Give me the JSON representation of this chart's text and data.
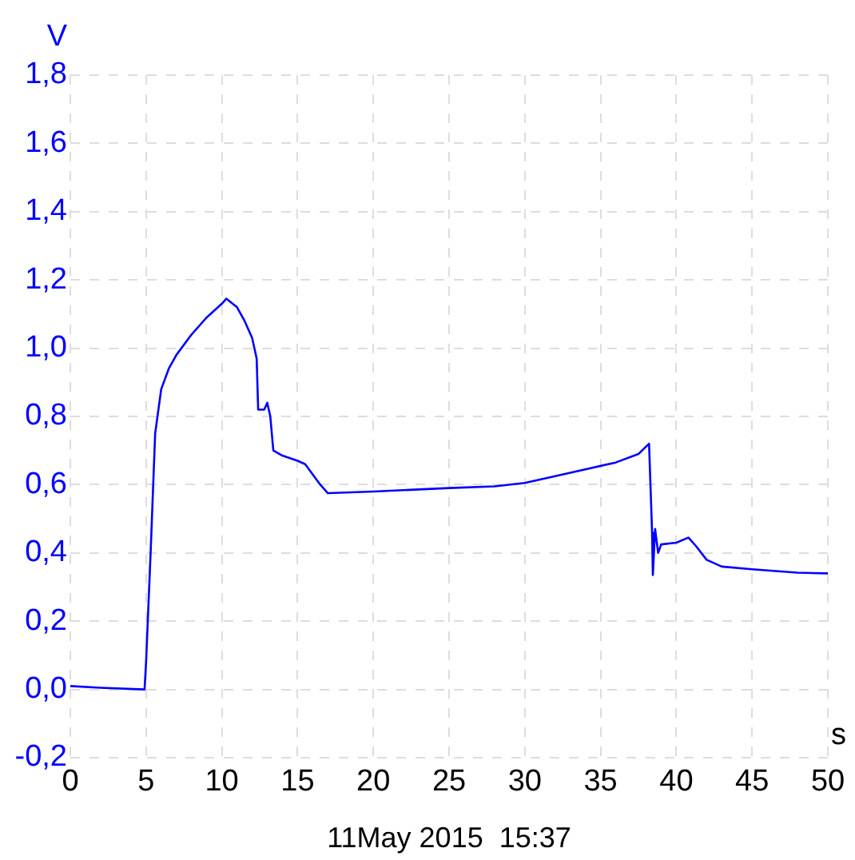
{
  "chart_data": {
    "type": "line",
    "xlabel": "s",
    "ylabel": "V",
    "annotations": [
      "11May 2015  15:37"
    ],
    "x": [
      0,
      2,
      4.9,
      5.0,
      5.3,
      5.6,
      6.0,
      6.5,
      7,
      8,
      9,
      10,
      10.3,
      11,
      11.5,
      12,
      12.3,
      12.4,
      12.8,
      13.0,
      13.2,
      13.4,
      14,
      15,
      15.5,
      16.5,
      17,
      20,
      25,
      28,
      30,
      33,
      36,
      37.5,
      38.2,
      38.4,
      38.45,
      38.6,
      38.8,
      39,
      40,
      40.8,
      41.3,
      42,
      43,
      45,
      48,
      50
    ],
    "series": [
      {
        "color": "#0000ff",
        "values": [
          0.01,
          0.005,
          0.0,
          0.08,
          0.4,
          0.75,
          0.88,
          0.94,
          0.98,
          1.04,
          1.09,
          1.13,
          1.145,
          1.12,
          1.08,
          1.03,
          0.97,
          0.82,
          0.82,
          0.84,
          0.8,
          0.7,
          0.685,
          0.67,
          0.66,
          0.6,
          0.575,
          0.58,
          0.59,
          0.595,
          0.605,
          0.635,
          0.665,
          0.69,
          0.72,
          0.46,
          0.335,
          0.47,
          0.4,
          0.425,
          0.43,
          0.445,
          0.42,
          0.38,
          0.36,
          0.352,
          0.342,
          0.34
        ]
      }
    ],
    "xlim": [
      0,
      50
    ],
    "xticks": [
      0,
      5,
      10,
      15,
      20,
      25,
      30,
      35,
      40,
      45,
      50
    ],
    "ylim": [
      -0.2,
      1.8
    ],
    "yticks": [
      {
        "value": -0.2,
        "label": "-0,2"
      },
      {
        "value": 0,
        "label": "0,0"
      },
      {
        "value": 0.2,
        "label": "0,2"
      },
      {
        "value": 0.4,
        "label": "0,4"
      },
      {
        "value": 0.6,
        "label": "0,6"
      },
      {
        "value": 0.8,
        "label": "0,8"
      },
      {
        "value": 1.0,
        "label": "1,0"
      },
      {
        "value": 1.2,
        "label": "1,2"
      },
      {
        "value": 1.4,
        "label": "1,4"
      },
      {
        "value": 1.6,
        "label": "1,6"
      },
      {
        "value": 1.8,
        "label": "1,8"
      }
    ],
    "grid": true,
    "marker": "none",
    "line_style": "solid",
    "legend": false
  }
}
